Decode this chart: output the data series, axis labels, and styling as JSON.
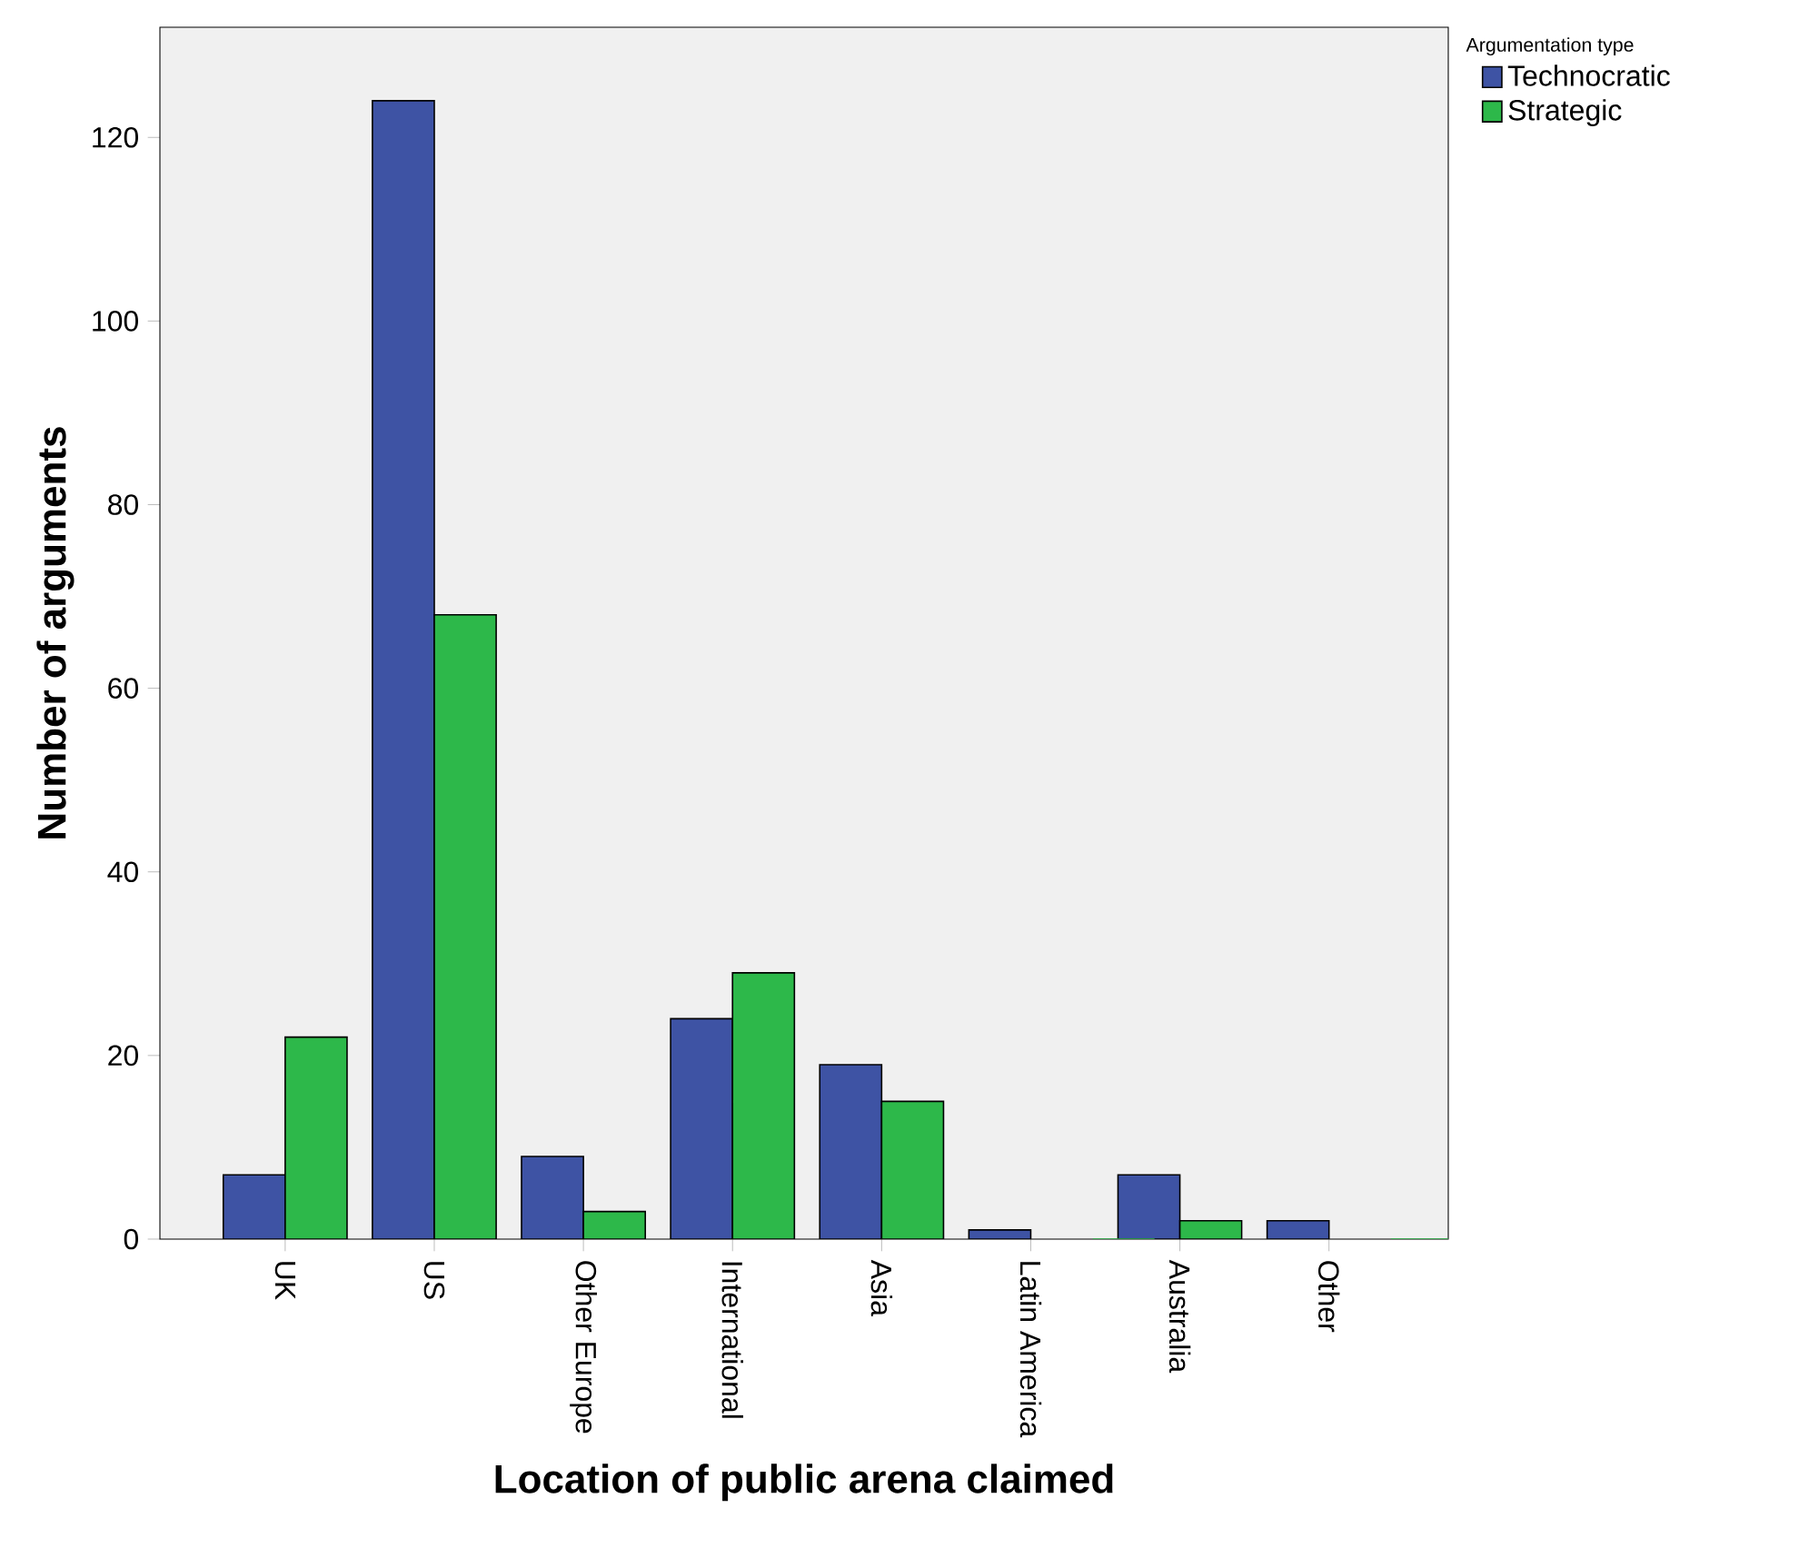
{
  "chart_data": {
    "type": "bar",
    "xlabel": "Location of public arena claimed",
    "ylabel": "Number of arguments",
    "legend_title": "Argumentation type",
    "legend": "top right",
    "categories": [
      "UK",
      "US",
      "Other Europe",
      "International",
      "Asia",
      "Latin America",
      "Australia",
      "Other"
    ],
    "series": [
      {
        "name": "Technocratic",
        "color": "#3e53a4",
        "values": [
          7,
          124,
          9,
          24,
          19,
          1,
          7,
          2
        ]
      },
      {
        "name": "Strategic",
        "color": "#2db84a",
        "values": [
          22,
          68,
          3,
          29,
          15,
          0,
          2,
          0
        ]
      }
    ],
    "ylim": [
      0,
      132
    ],
    "yticks": [
      0,
      20,
      40,
      60,
      80,
      100,
      120
    ]
  }
}
